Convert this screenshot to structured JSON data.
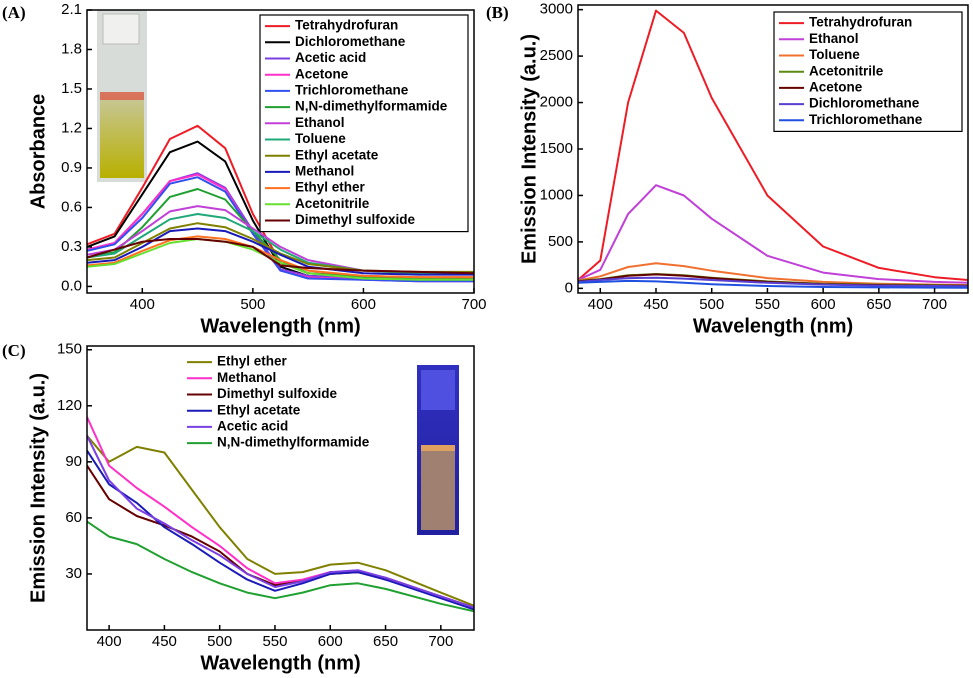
{
  "chart_data": [
    {
      "type": "line",
      "panel_label": "(A)",
      "xlabel": "Wavelength (nm)",
      "ylabel": "Absorbance",
      "xlim": [
        350,
        700
      ],
      "xticks": [
        400,
        500,
        600,
        700
      ],
      "ylim": [
        -0.05,
        2.1
      ],
      "yticks": [
        {
          "value": 0,
          "label": "0.0"
        },
        0.3,
        0.6,
        0.9,
        1.2,
        1.5,
        1.8,
        2.1
      ],
      "legend": "upper right",
      "legend_frame": true,
      "x": [
        350,
        375,
        400,
        425,
        450,
        475,
        500,
        525,
        550,
        600,
        650,
        700
      ],
      "series": [
        {
          "name": "Tetrahydrofuran",
          "color": "#ee1c25",
          "values": [
            0.32,
            0.4,
            0.75,
            1.12,
            1.22,
            1.05,
            0.55,
            0.18,
            0.1,
            0.08,
            0.07,
            0.07
          ]
        },
        {
          "name": "Dichloromethane",
          "color": "#000000",
          "values": [
            0.3,
            0.38,
            0.7,
            1.02,
            1.1,
            0.95,
            0.5,
            0.15,
            0.08,
            0.06,
            0.05,
            0.05
          ]
        },
        {
          "name": "Acetic acid",
          "color": "#7b3fe4",
          "values": [
            0.28,
            0.33,
            0.55,
            0.8,
            0.86,
            0.75,
            0.42,
            0.13,
            0.08,
            0.06,
            0.05,
            0.05
          ]
        },
        {
          "name": "Acetone",
          "color": "#ff2fc8",
          "values": [
            0.28,
            0.33,
            0.55,
            0.8,
            0.85,
            0.74,
            0.4,
            0.12,
            0.07,
            0.05,
            0.04,
            0.04
          ]
        },
        {
          "name": "Trichloromethane",
          "color": "#3050f0",
          "values": [
            0.27,
            0.32,
            0.52,
            0.78,
            0.83,
            0.72,
            0.4,
            0.12,
            0.06,
            0.05,
            0.04,
            0.04
          ]
        },
        {
          "name": "N,N-dimethylformamide",
          "color": "#20a030",
          "values": [
            0.22,
            0.26,
            0.45,
            0.68,
            0.74,
            0.66,
            0.42,
            0.2,
            0.1,
            0.07,
            0.06,
            0.06
          ]
        },
        {
          "name": "Ethanol",
          "color": "#c040d8",
          "values": [
            0.24,
            0.28,
            0.42,
            0.57,
            0.61,
            0.58,
            0.44,
            0.3,
            0.2,
            0.12,
            0.1,
            0.1
          ]
        },
        {
          "name": "Toluene",
          "color": "#20a878",
          "values": [
            0.22,
            0.25,
            0.38,
            0.51,
            0.55,
            0.52,
            0.42,
            0.28,
            0.18,
            0.12,
            0.1,
            0.1
          ]
        },
        {
          "name": "Ethyl acetate",
          "color": "#808000",
          "values": [
            0.2,
            0.22,
            0.33,
            0.44,
            0.48,
            0.45,
            0.36,
            0.25,
            0.17,
            0.12,
            0.11,
            0.11
          ]
        },
        {
          "name": "Methanol",
          "color": "#1a1ab8",
          "values": [
            0.18,
            0.2,
            0.3,
            0.42,
            0.44,
            0.42,
            0.34,
            0.24,
            0.15,
            0.1,
            0.09,
            0.09
          ]
        },
        {
          "name": "Ethyl ether",
          "color": "#ff7020",
          "values": [
            0.16,
            0.18,
            0.27,
            0.35,
            0.38,
            0.36,
            0.3,
            0.2,
            0.12,
            0.08,
            0.07,
            0.07
          ]
        },
        {
          "name": "Acetonitrile",
          "color": "#66e030",
          "values": [
            0.15,
            0.17,
            0.25,
            0.33,
            0.36,
            0.34,
            0.28,
            0.18,
            0.1,
            0.06,
            0.05,
            0.05
          ]
        },
        {
          "name": "Dimethyl sulfoxide",
          "color": "#660000",
          "values": [
            0.22,
            0.28,
            0.34,
            0.36,
            0.36,
            0.34,
            0.3,
            0.16,
            0.14,
            0.12,
            0.11,
            0.1
          ]
        }
      ]
    },
    {
      "type": "line",
      "panel_label": "(B)",
      "xlabel": "Wavelength (nm)",
      "ylabel": "Emission Intensity (a.u.)",
      "xlim": [
        380,
        730
      ],
      "xticks": [
        400,
        450,
        500,
        550,
        600,
        650,
        700
      ],
      "ylim": [
        -50,
        3050
      ],
      "yticks": [
        0,
        500,
        1000,
        1500,
        2000,
        2500,
        3000
      ],
      "legend": "upper right",
      "legend_frame": true,
      "x": [
        380,
        400,
        425,
        450,
        475,
        500,
        550,
        600,
        650,
        700,
        730
      ],
      "series": [
        {
          "name": "Tetrahydrofuran",
          "color": "#ee1c25",
          "values": [
            90,
            300,
            2000,
            2990,
            2750,
            2050,
            1000,
            450,
            220,
            120,
            90
          ]
        },
        {
          "name": "Ethanol",
          "color": "#c040d8",
          "values": [
            90,
            200,
            800,
            1110,
            1000,
            750,
            350,
            170,
            100,
            70,
            60
          ]
        },
        {
          "name": "Toluene",
          "color": "#f07030",
          "values": [
            85,
            130,
            230,
            270,
            240,
            190,
            110,
            70,
            50,
            40,
            35
          ]
        },
        {
          "name": "Acetonitrile",
          "color": "#5a8a10",
          "values": [
            80,
            100,
            140,
            155,
            140,
            115,
            75,
            50,
            40,
            35,
            30
          ]
        },
        {
          "name": "Acetone",
          "color": "#660000",
          "values": [
            75,
            95,
            135,
            150,
            135,
            110,
            70,
            45,
            35,
            30,
            28
          ]
        },
        {
          "name": "Dichloromethane",
          "color": "#5a3fd0",
          "values": [
            70,
            90,
            110,
            115,
            105,
            90,
            60,
            40,
            30,
            25,
            22
          ]
        },
        {
          "name": "Trichloromethane",
          "color": "#2050e0",
          "values": [
            60,
            70,
            80,
            75,
            60,
            45,
            25,
            15,
            10,
            8,
            7
          ]
        }
      ]
    },
    {
      "type": "line",
      "panel_label": "(C)",
      "xlabel": "Wavelength (nm)",
      "ylabel": "Emission Intensity (a.u.)",
      "xlim": [
        380,
        730
      ],
      "xticks": [
        400,
        450,
        500,
        550,
        600,
        650,
        700
      ],
      "ylim": [
        0,
        152
      ],
      "yticks": [
        30,
        60,
        90,
        120,
        150
      ],
      "legend": "upper center",
      "legend_frame": false,
      "x": [
        380,
        400,
        425,
        450,
        475,
        500,
        525,
        550,
        575,
        600,
        625,
        650,
        700,
        730
      ],
      "series": [
        {
          "name": "Ethyl ether",
          "color": "#808000",
          "values": [
            104,
            90,
            98,
            95,
            75,
            55,
            38,
            30,
            31,
            35,
            36,
            32,
            20,
            13
          ]
        },
        {
          "name": "Methanol",
          "color": "#ff2fc8",
          "values": [
            114,
            88,
            76,
            66,
            55,
            45,
            33,
            25,
            27,
            31,
            31,
            27,
            18,
            12
          ]
        },
        {
          "name": "Dimethyl sulfoxide",
          "color": "#660000",
          "values": [
            88,
            70,
            61,
            56,
            50,
            42,
            30,
            24,
            26,
            30,
            31,
            28,
            18,
            12
          ]
        },
        {
          "name": "Ethyl acetate",
          "color": "#1a1ab8",
          "values": [
            96,
            78,
            68,
            55,
            46,
            36,
            27,
            21,
            25,
            30,
            31,
            27,
            17,
            11
          ]
        },
        {
          "name": "Acetic acid",
          "color": "#7b3fe4",
          "values": [
            104,
            80,
            65,
            57,
            48,
            40,
            30,
            23,
            26,
            31,
            32,
            28,
            18,
            12
          ]
        },
        {
          "name": "N,N-dimethylformamide",
          "color": "#20a030",
          "values": [
            58,
            50,
            46,
            38,
            31,
            25,
            20,
            17,
            20,
            24,
            25,
            22,
            14,
            10
          ]
        }
      ]
    }
  ]
}
